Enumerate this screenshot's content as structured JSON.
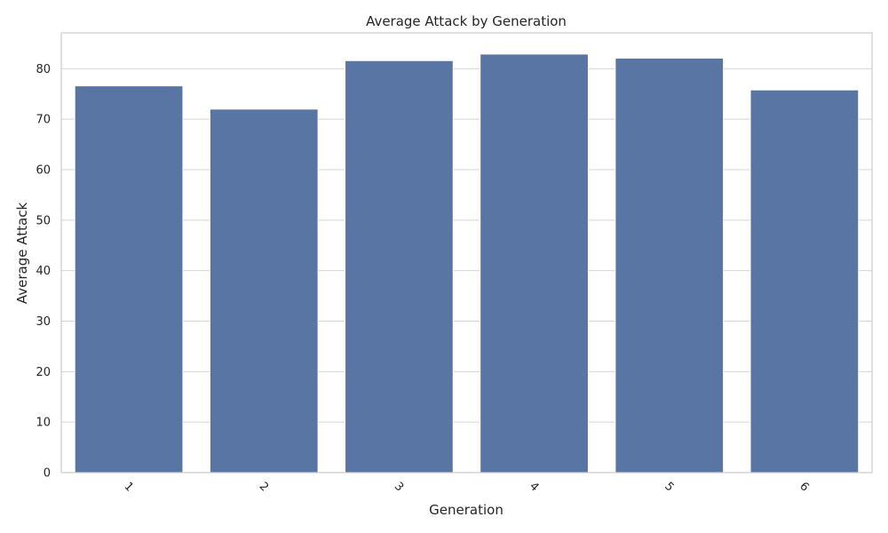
{
  "chart_data": {
    "type": "bar",
    "title": "Average Attack by Generation",
    "xlabel": "Generation",
    "ylabel": "Average Attack",
    "categories": [
      "1",
      "2",
      "3",
      "4",
      "5",
      "6"
    ],
    "values": [
      76.6,
      72.0,
      81.6,
      82.9,
      82.1,
      75.8
    ],
    "yticks": [
      "0",
      "10",
      "20",
      "30",
      "40",
      "50",
      "60",
      "70",
      "80"
    ],
    "ylim": [
      0,
      87.1
    ],
    "grid": "horizontal",
    "bar_color": "#5875a4",
    "xtick_rotation": "45deg"
  }
}
